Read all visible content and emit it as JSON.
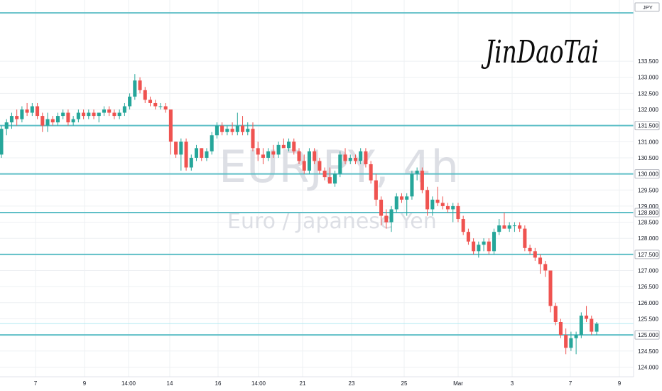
{
  "currency_badge": "JPY",
  "watermark": {
    "symbol": "EURJPY, 4h",
    "description": "Euro / Japanese Yen"
  },
  "signature": "JinDaoTai",
  "colors": {
    "up": "#26a69a",
    "down": "#ef5350",
    "level": "#5fbfc7",
    "grid": "#eef0f3"
  },
  "chart_data": {
    "type": "candlestick",
    "ylim": [
      123.7,
      135.4
    ],
    "y_ticks": [
      "124.000",
      "124.500",
      "125.000",
      "125.500",
      "126.000",
      "126.500",
      "127.000",
      "127.500",
      "128.000",
      "128.500",
      "129.000",
      "129.500",
      "130.000",
      "130.500",
      "131.000",
      "131.500",
      "132.000",
      "132.500",
      "133.000",
      "133.500"
    ],
    "x_ticks": [
      "7",
      "9",
      "14:00",
      "14",
      "16",
      "14:00",
      "21",
      "23",
      "25",
      "Mar",
      "3",
      "7",
      "9"
    ],
    "levels": [
      {
        "value": 135.0,
        "label": ""
      },
      {
        "value": 131.5,
        "label": "131.500"
      },
      {
        "value": 130.0,
        "label": "130.000"
      },
      {
        "value": 128.8,
        "label": "128.800"
      },
      {
        "value": 127.5,
        "label": "127.500"
      },
      {
        "value": 125.0,
        "label": "125.000"
      }
    ],
    "current_price": 125.35,
    "candles": [
      [
        130.6,
        131.5,
        130.5,
        131.4
      ],
      [
        131.4,
        131.7,
        131.2,
        131.6
      ],
      [
        131.6,
        131.9,
        131.4,
        131.8
      ],
      [
        131.8,
        132.0,
        131.5,
        131.7
      ],
      [
        131.7,
        132.1,
        131.6,
        132.0
      ],
      [
        132.0,
        132.2,
        131.8,
        131.9
      ],
      [
        131.9,
        132.2,
        131.8,
        132.1
      ],
      [
        132.1,
        132.2,
        131.7,
        131.8
      ],
      [
        131.8,
        131.9,
        131.3,
        131.5
      ],
      [
        131.5,
        131.9,
        131.3,
        131.7
      ],
      [
        131.7,
        131.8,
        131.5,
        131.6
      ],
      [
        131.6,
        131.9,
        131.5,
        131.8
      ],
      [
        131.8,
        132.0,
        131.7,
        131.9
      ],
      [
        131.9,
        132.0,
        131.5,
        131.6
      ],
      [
        131.6,
        131.8,
        131.5,
        131.7
      ],
      [
        131.7,
        132.0,
        131.6,
        131.9
      ],
      [
        131.9,
        132.0,
        131.7,
        131.8
      ],
      [
        131.8,
        132.0,
        131.7,
        131.9
      ],
      [
        131.9,
        132.0,
        131.7,
        131.8
      ],
      [
        131.8,
        131.9,
        131.6,
        131.9
      ],
      [
        131.9,
        132.1,
        131.8,
        132.0
      ],
      [
        132.0,
        132.1,
        131.8,
        131.9
      ],
      [
        131.9,
        132.0,
        131.7,
        131.8
      ],
      [
        131.8,
        132.0,
        131.7,
        131.9
      ],
      [
        131.9,
        132.2,
        131.8,
        132.1
      ],
      [
        132.1,
        132.5,
        132.0,
        132.4
      ],
      [
        132.4,
        133.1,
        132.3,
        132.9
      ],
      [
        132.9,
        133.0,
        132.5,
        132.6
      ],
      [
        132.6,
        132.7,
        132.2,
        132.3
      ],
      [
        132.3,
        132.4,
        132.1,
        132.2
      ],
      [
        132.2,
        132.3,
        132.0,
        132.1
      ],
      [
        132.1,
        132.2,
        132.0,
        132.1
      ],
      [
        132.1,
        132.2,
        131.9,
        132.0
      ],
      [
        132.0,
        132.0,
        130.6,
        131.0
      ],
      [
        131.0,
        131.0,
        130.5,
        130.6
      ],
      [
        130.6,
        131.1,
        130.1,
        131.0
      ],
      [
        131.0,
        131.1,
        130.1,
        130.2
      ],
      [
        130.2,
        130.6,
        130.1,
        130.5
      ],
      [
        130.5,
        130.9,
        130.4,
        130.8
      ],
      [
        130.8,
        130.8,
        130.4,
        130.5
      ],
      [
        130.5,
        130.8,
        130.4,
        130.7
      ],
      [
        130.7,
        131.3,
        130.6,
        131.2
      ],
      [
        131.2,
        131.6,
        131.1,
        131.5
      ],
      [
        131.5,
        131.6,
        131.2,
        131.3
      ],
      [
        131.3,
        131.5,
        131.2,
        131.4
      ],
      [
        131.4,
        131.6,
        131.2,
        131.3
      ],
      [
        131.3,
        131.9,
        131.2,
        131.5
      ],
      [
        131.5,
        131.8,
        131.2,
        131.3
      ],
      [
        131.3,
        131.6,
        131.2,
        131.4
      ],
      [
        131.4,
        131.6,
        130.7,
        130.8
      ],
      [
        130.8,
        131.0,
        130.4,
        130.6
      ],
      [
        130.6,
        130.8,
        130.3,
        130.5
      ],
      [
        130.5,
        130.8,
        130.4,
        130.7
      ],
      [
        130.7,
        130.9,
        130.5,
        130.6
      ],
      [
        130.6,
        131.0,
        130.5,
        130.9
      ],
      [
        130.9,
        131.1,
        130.8,
        130.8
      ],
      [
        130.8,
        131.1,
        130.7,
        131.0
      ],
      [
        131.0,
        131.1,
        130.6,
        130.7
      ],
      [
        130.7,
        130.8,
        130.3,
        130.4
      ],
      [
        130.4,
        130.6,
        130.0,
        130.1
      ],
      [
        130.1,
        130.8,
        130.0,
        130.7
      ],
      [
        130.7,
        130.8,
        130.3,
        130.4
      ],
      [
        130.4,
        130.5,
        130.0,
        130.1
      ],
      [
        130.1,
        130.2,
        129.8,
        129.9
      ],
      [
        129.9,
        130.2,
        129.7,
        129.7
      ],
      [
        129.7,
        130.1,
        129.6,
        130.0
      ],
      [
        130.0,
        130.7,
        129.9,
        130.6
      ],
      [
        130.6,
        130.8,
        130.3,
        130.4
      ],
      [
        130.4,
        130.6,
        130.3,
        130.5
      ],
      [
        130.5,
        130.6,
        130.3,
        130.4
      ],
      [
        130.4,
        130.8,
        130.3,
        130.7
      ],
      [
        130.7,
        130.8,
        130.2,
        130.3
      ],
      [
        130.3,
        130.4,
        129.7,
        129.8
      ],
      [
        129.8,
        130.0,
        129.0,
        129.2
      ],
      [
        129.2,
        129.3,
        128.4,
        128.7
      ],
      [
        128.7,
        128.9,
        128.3,
        128.5
      ],
      [
        128.5,
        129.0,
        128.2,
        128.9
      ],
      [
        128.9,
        129.4,
        128.8,
        129.3
      ],
      [
        129.3,
        129.4,
        129.1,
        129.2
      ],
      [
        129.2,
        129.4,
        128.7,
        129.3
      ],
      [
        129.3,
        130.1,
        129.2,
        130.0
      ],
      [
        130.0,
        130.2,
        129.8,
        130.1
      ],
      [
        130.1,
        130.2,
        129.4,
        129.5
      ],
      [
        129.5,
        129.6,
        128.7,
        128.9
      ],
      [
        128.9,
        129.3,
        128.7,
        129.2
      ],
      [
        129.2,
        129.6,
        129.0,
        129.1
      ],
      [
        129.1,
        129.3,
        128.9,
        129.0
      ],
      [
        129.0,
        129.1,
        128.8,
        128.9
      ],
      [
        128.9,
        129.1,
        128.5,
        129.0
      ],
      [
        129.0,
        129.1,
        128.5,
        128.6
      ],
      [
        128.6,
        128.7,
        128.1,
        128.2
      ],
      [
        128.2,
        128.3,
        127.8,
        127.9
      ],
      [
        127.9,
        128.0,
        127.5,
        127.6
      ],
      [
        127.6,
        127.9,
        127.4,
        127.8
      ],
      [
        127.8,
        128.0,
        127.6,
        127.9
      ],
      [
        127.9,
        128.0,
        127.5,
        127.6
      ],
      [
        127.6,
        128.3,
        127.5,
        128.2
      ],
      [
        128.2,
        128.6,
        128.1,
        128.4
      ],
      [
        128.4,
        128.8,
        128.3,
        128.3
      ],
      [
        128.3,
        128.5,
        128.2,
        128.4
      ],
      [
        128.4,
        128.5,
        128.2,
        128.4
      ],
      [
        128.4,
        128.5,
        128.2,
        128.3
      ],
      [
        128.3,
        128.4,
        127.6,
        127.7
      ],
      [
        127.7,
        127.8,
        127.5,
        127.6
      ],
      [
        127.6,
        127.7,
        127.3,
        127.4
      ],
      [
        127.4,
        127.5,
        126.9,
        127.2
      ],
      [
        127.2,
        127.3,
        126.8,
        127.0
      ],
      [
        127.0,
        127.0,
        125.7,
        125.9
      ],
      [
        125.9,
        126.0,
        125.3,
        125.4
      ],
      [
        125.4,
        125.5,
        124.9,
        125.0
      ],
      [
        125.0,
        125.2,
        124.4,
        124.6
      ],
      [
        124.6,
        125.1,
        124.5,
        124.9
      ],
      [
        124.9,
        125.1,
        124.4,
        125.0
      ],
      [
        125.0,
        125.7,
        124.9,
        125.6
      ],
      [
        125.6,
        125.9,
        125.4,
        125.5
      ],
      [
        125.5,
        125.6,
        125.0,
        125.1
      ],
      [
        125.1,
        125.4,
        125.0,
        125.35
      ]
    ]
  }
}
